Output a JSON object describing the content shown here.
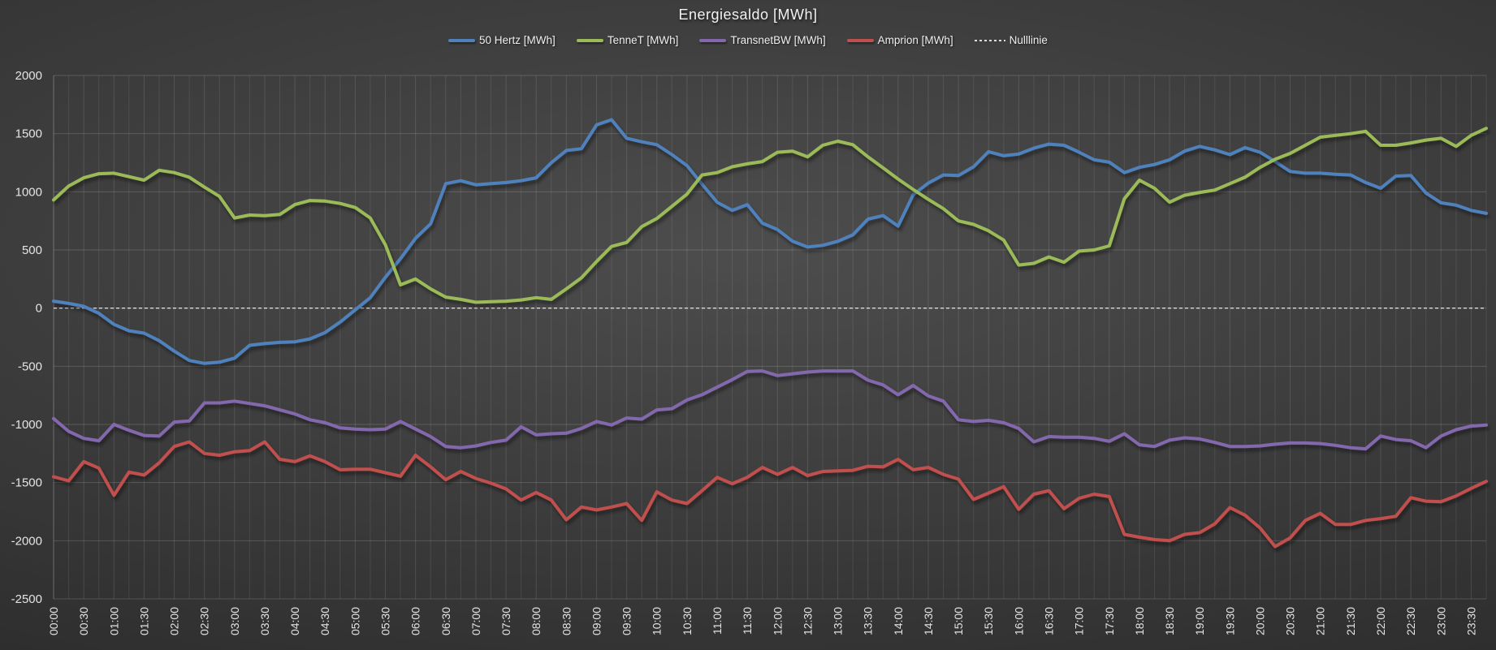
{
  "title": "Energiesaldo [MWh]",
  "legend": {
    "items": [
      {
        "label": "50 Hertz [MWh]"
      },
      {
        "label": "TenneT [MWh]"
      },
      {
        "label": "TransnetBW [MWh]"
      },
      {
        "label": "Amprion [MWh]"
      },
      {
        "label": "Nulllinie"
      }
    ]
  },
  "axes": {
    "y_ticks": [
      2000,
      1500,
      1000,
      500,
      0,
      -500,
      -1000,
      -1500,
      -2000,
      -2500
    ],
    "y_min": -2500,
    "y_max": 2000,
    "grid": "on",
    "x_minor_grid_minutes": 15,
    "x_label_every_minutes": 30
  },
  "chart_data": {
    "type": "line",
    "title": "Energiesaldo [MWh]",
    "xlabel": "",
    "ylabel": "",
    "ylim": [
      -2500,
      2000
    ],
    "legend_position": "top",
    "x_step_minutes": 15,
    "x_start": "00:00",
    "x_end": "23:45",
    "categories": [
      "00:00",
      "00:30",
      "01:00",
      "01:30",
      "02:00",
      "02:30",
      "03:00",
      "03:30",
      "04:00",
      "04:30",
      "05:00",
      "05:30",
      "06:00",
      "06:30",
      "07:00",
      "07:30",
      "08:00",
      "08:30",
      "09:00",
      "09:30",
      "10:00",
      "10:30",
      "11:00",
      "11:30",
      "12:00",
      "12:30",
      "13:00",
      "13:30",
      "14:00",
      "14:30",
      "15:00",
      "15:30",
      "16:00",
      "16:30",
      "17:00",
      "17:30",
      "18:00",
      "18:30",
      "19:00",
      "19:30",
      "20:00",
      "20:30",
      "21:00",
      "21:30",
      "22:00",
      "22:30",
      "23:00",
      "23:30"
    ],
    "nulllinie": {
      "label": "Nulllinie",
      "value": 0,
      "color": "#dcdcdc",
      "style": "dashed"
    },
    "series": [
      {
        "name": "50 Hertz [MWh]",
        "color": "#4F81BD",
        "values": [
          60,
          40,
          15,
          -45,
          -140,
          -195,
          -215,
          -280,
          -370,
          -450,
          -475,
          -465,
          -430,
          -320,
          -305,
          -295,
          -290,
          -265,
          -210,
          -120,
          -15,
          90,
          265,
          425,
          600,
          725,
          1070,
          1095,
          1060,
          1070,
          1080,
          1095,
          1120,
          1250,
          1355,
          1370,
          1575,
          1620,
          1460,
          1430,
          1405,
          1320,
          1225,
          1065,
          910,
          840,
          890,
          730,
          675,
          575,
          525,
          540,
          575,
          630,
          765,
          795,
          705,
          975,
          1075,
          1145,
          1140,
          1215,
          1345,
          1310,
          1325,
          1375,
          1410,
          1400,
          1340,
          1275,
          1255,
          1165,
          1210,
          1235,
          1275,
          1350,
          1390,
          1360,
          1320,
          1380,
          1340,
          1260,
          1175,
          1160,
          1160,
          1150,
          1145,
          1080,
          1030,
          1135,
          1140,
          990,
          905,
          885,
          840,
          815
        ]
      },
      {
        "name": "TenneT [MWh]",
        "color": "#9BBB59",
        "values": [
          930,
          1050,
          1120,
          1155,
          1160,
          1130,
          1100,
          1185,
          1165,
          1125,
          1040,
          960,
          775,
          800,
          795,
          805,
          890,
          925,
          920,
          900,
          865,
          775,
          545,
          200,
          250,
          165,
          95,
          75,
          50,
          55,
          60,
          70,
          90,
          75,
          165,
          260,
          400,
          530,
          565,
          700,
          770,
          875,
          980,
          1145,
          1165,
          1215,
          1240,
          1260,
          1340,
          1350,
          1300,
          1400,
          1435,
          1405,
          1300,
          1205,
          1110,
          1020,
          935,
          855,
          750,
          720,
          665,
          585,
          370,
          385,
          440,
          395,
          490,
          500,
          535,
          940,
          1100,
          1030,
          910,
          970,
          995,
          1015,
          1070,
          1125,
          1210,
          1280,
          1330,
          1400,
          1470,
          1485,
          1500,
          1520,
          1400,
          1400,
          1420,
          1445,
          1460,
          1390,
          1485,
          1545
        ]
      },
      {
        "name": "TransnetBW [MWh]",
        "color": "#8467AD",
        "values": [
          -950,
          -1060,
          -1120,
          -1140,
          -1000,
          -1050,
          -1095,
          -1100,
          -980,
          -970,
          -815,
          -815,
          -800,
          -820,
          -840,
          -875,
          -910,
          -960,
          -985,
          -1030,
          -1040,
          -1045,
          -1040,
          -975,
          -1040,
          -1105,
          -1190,
          -1200,
          -1185,
          -1155,
          -1135,
          -1020,
          -1090,
          -1080,
          -1075,
          -1035,
          -975,
          -1005,
          -945,
          -955,
          -875,
          -865,
          -790,
          -745,
          -680,
          -615,
          -545,
          -540,
          -580,
          -565,
          -550,
          -540,
          -540,
          -540,
          -620,
          -660,
          -745,
          -665,
          -755,
          -800,
          -960,
          -975,
          -965,
          -985,
          -1035,
          -1150,
          -1105,
          -1110,
          -1110,
          -1120,
          -1145,
          -1080,
          -1175,
          -1190,
          -1135,
          -1115,
          -1125,
          -1155,
          -1190,
          -1190,
          -1185,
          -1170,
          -1160,
          -1160,
          -1165,
          -1180,
          -1200,
          -1210,
          -1100,
          -1130,
          -1140,
          -1200,
          -1100,
          -1045,
          -1015,
          -1005
        ]
      },
      {
        "name": "Amprion [MWh]",
        "color": "#C0504D",
        "values": [
          -1450,
          -1485,
          -1320,
          -1375,
          -1610,
          -1410,
          -1435,
          -1330,
          -1190,
          -1150,
          -1250,
          -1265,
          -1235,
          -1225,
          -1150,
          -1300,
          -1320,
          -1270,
          -1320,
          -1390,
          -1385,
          -1385,
          -1415,
          -1445,
          -1265,
          -1365,
          -1475,
          -1405,
          -1465,
          -1505,
          -1555,
          -1650,
          -1585,
          -1650,
          -1820,
          -1710,
          -1735,
          -1710,
          -1680,
          -1825,
          -1580,
          -1650,
          -1680,
          -1570,
          -1455,
          -1510,
          -1455,
          -1370,
          -1430,
          -1370,
          -1440,
          -1405,
          -1400,
          -1395,
          -1360,
          -1365,
          -1300,
          -1390,
          -1370,
          -1430,
          -1470,
          -1645,
          -1590,
          -1535,
          -1730,
          -1600,
          -1570,
          -1725,
          -1635,
          -1600,
          -1620,
          -1945,
          -1970,
          -1990,
          -2000,
          -1945,
          -1930,
          -1855,
          -1715,
          -1780,
          -1890,
          -2050,
          -1975,
          -1825,
          -1765,
          -1860,
          -1860,
          -1825,
          -1810,
          -1790,
          -1630,
          -1660,
          -1665,
          -1615,
          -1550,
          -1490
        ]
      }
    ]
  },
  "colors": {
    "background_center": "#4d4d4d",
    "background_edge": "#252525",
    "grid_horizontal": "rgba(255,255,255,0.16)",
    "grid_vertical": "rgba(255,255,255,0.09)",
    "axis_text": "#e4e4e4",
    "title_text": "#f2f2f2",
    "zero_line": "#dcdcdc"
  }
}
